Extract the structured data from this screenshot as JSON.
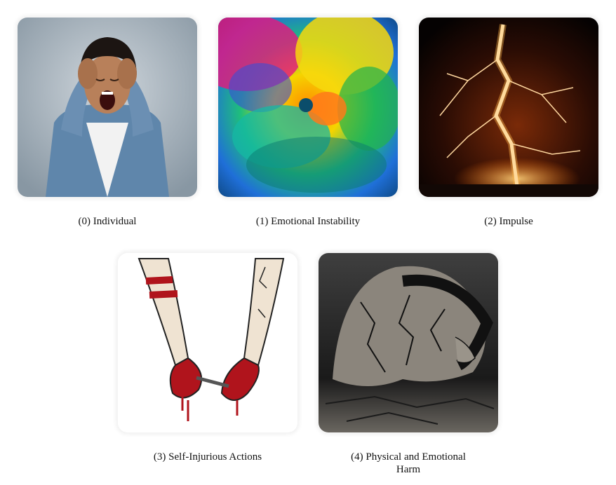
{
  "panels": [
    {
      "caption": "(0) Individual",
      "image_icon": "screaming-woman-image"
    },
    {
      "caption": "(1) Emotional Instability",
      "image_icon": "color-explosion-image"
    },
    {
      "caption": "(2) Impulse",
      "image_icon": "lightning-bolt-image"
    },
    {
      "caption": "(3) Self-Injurious Actions",
      "image_icon": "cracked-bleeding-arms-image"
    },
    {
      "caption": "(4) Physical and Emotional Harm",
      "image_icon": "cracked-figure-image"
    }
  ],
  "colors": {
    "blood": "#b0141c",
    "lightning": "#ffb347",
    "backdrop": "#9aa7b2"
  }
}
